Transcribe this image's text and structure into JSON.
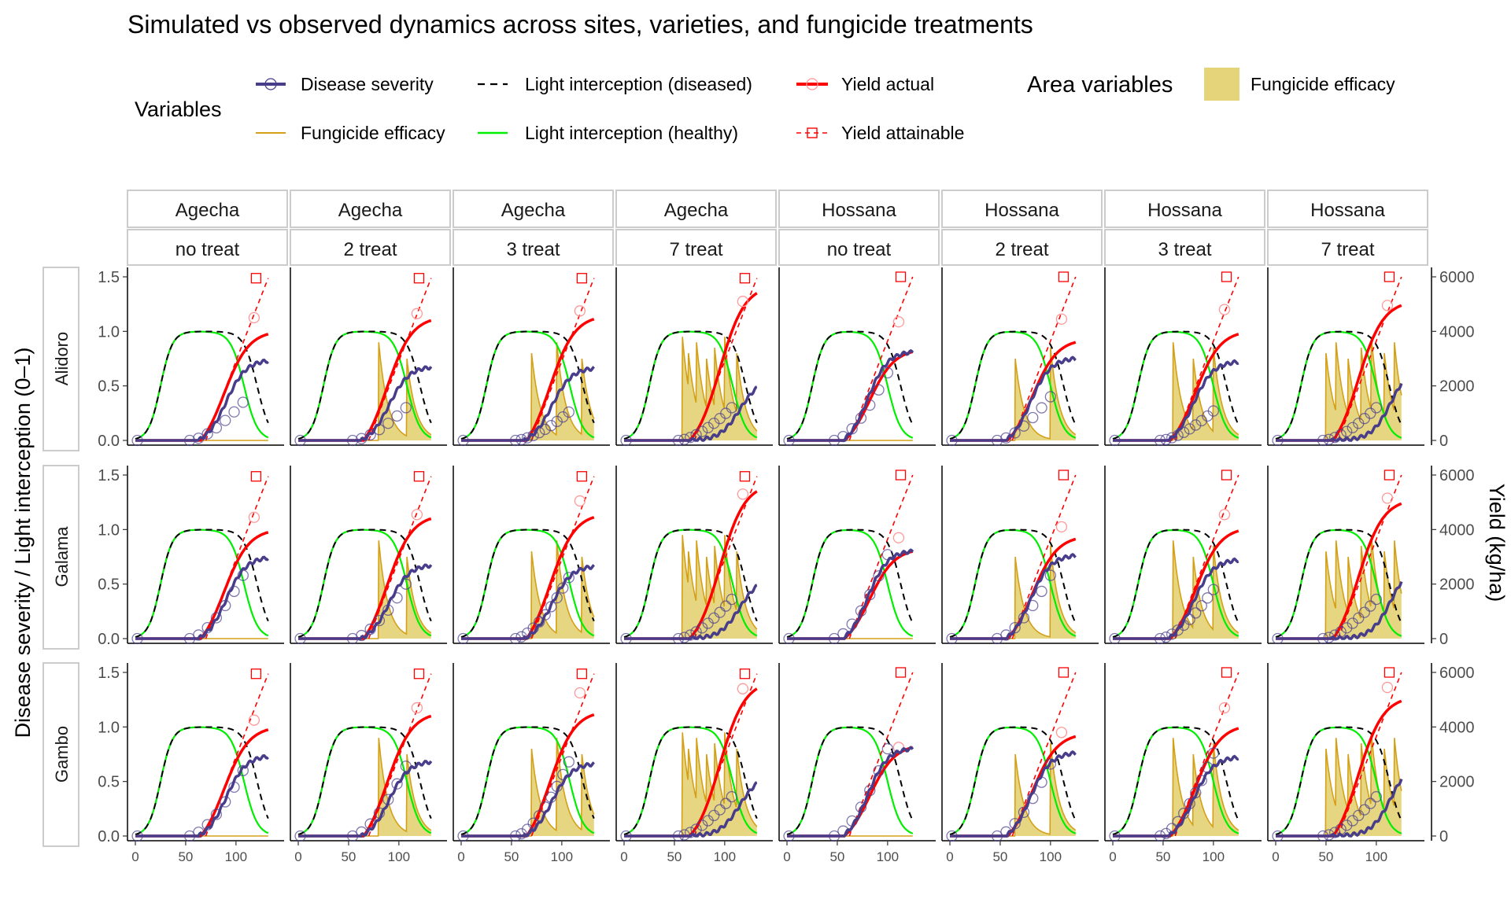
{
  "title": "Simulated vs observed dynamics across sites, varieties, and fungicide treatments",
  "legend": {
    "variables_title": "Variables",
    "area_title": "Area variables",
    "items": [
      {
        "key": "disease",
        "label": "Disease severity",
        "color": "#483D8B"
      },
      {
        "key": "li_dis",
        "label": "Light interception (diseased)",
        "color": "#000000"
      },
      {
        "key": "y_act",
        "label": "Yield actual",
        "color": "#FF0000"
      },
      {
        "key": "fung",
        "label": "Fungicide efficacy",
        "color": "#D4A017"
      },
      {
        "key": "li_h",
        "label": "Light interception (healthy)",
        "color": "#00EE00"
      },
      {
        "key": "y_att",
        "label": "Yield attainable",
        "color": "#FF0000"
      }
    ],
    "area_items": [
      {
        "key": "fung_area",
        "label": "Fungicide efficacy",
        "color": "#E5D47A"
      }
    ]
  },
  "chart_data": {
    "type": "line",
    "ylabel_left": "Disease severity / Light interception (0–1)",
    "ylabel_right": "Yield (kg/ha)",
    "xlabel": "",
    "xlim": [
      0,
      140
    ],
    "ylim_left": [
      0,
      1.5
    ],
    "ylim_right": [
      0,
      6000
    ],
    "x_ticks": [
      "0",
      "50",
      "100"
    ],
    "y_ticks_left": [
      "0.0",
      "0.5",
      "1.0",
      "1.5"
    ],
    "y_ticks_right": [
      "0",
      "2000",
      "4000",
      "6000"
    ],
    "legend_position": "top",
    "sites": [
      "Agecha",
      "Agecha",
      "Agecha",
      "Agecha",
      "Hossana",
      "Hossana",
      "Hossana",
      "Hossana"
    ],
    "treatments": [
      "no treat",
      "2 treat",
      "3 treat",
      "7 treat",
      "no treat",
      "2 treat",
      "3 treat",
      "7 treat"
    ],
    "varieties": [
      "Alidoro",
      "Galama",
      "Gambo"
    ],
    "spray_days": [
      [],
      [
        80,
        108
      ],
      [
        70,
        95,
        120
      ],
      [
        58,
        64,
        72,
        82,
        90,
        100,
        112
      ],
      [],
      [
        65,
        100
      ],
      [
        60,
        80,
        100
      ],
      [
        50,
        60,
        72,
        85,
        95,
        108,
        118
      ]
    ],
    "series_final": {
      "disease": [
        [
          0.73,
          0.67,
          0.66,
          0.48,
          0.81,
          0.75,
          0.72,
          0.52
        ],
        [
          0.74,
          0.67,
          0.66,
          0.48,
          0.8,
          0.76,
          0.72,
          0.52
        ],
        [
          0.73,
          0.68,
          0.66,
          0.48,
          0.8,
          0.76,
          0.72,
          0.52
        ]
      ],
      "yield_actual_kg": [
        [
          3900,
          4400,
          4450,
          5400,
          3250,
          3600,
          3900,
          4950
        ],
        [
          3900,
          4400,
          4450,
          5400,
          3200,
          3650,
          3950,
          4950
        ],
        [
          3900,
          4400,
          4450,
          5400,
          3250,
          3650,
          3950,
          4950
        ]
      ],
      "yield_attainable_kg": [
        5950,
        5950,
        5950,
        5950,
        6000,
        6000,
        6000,
        6000
      ]
    },
    "observed_yield_kg": [
      [
        4500,
        4650,
        4750,
        5100,
        4350,
        4450,
        4800,
        4950
      ],
      [
        4450,
        4550,
        5050,
        5300,
        3700,
        4100,
        4550,
        5150
      ],
      [
        4250,
        4700,
        5250,
        5400,
        3250,
        3800,
        4700,
        5450
      ]
    ],
    "observed_disease_final": [
      [
        0.35,
        0.3,
        0.26,
        0.3,
        0.62,
        0.4,
        0.27,
        0.3
      ],
      [
        0.58,
        0.5,
        0.56,
        0.36,
        0.77,
        0.58,
        0.45,
        0.36
      ],
      [
        0.6,
        0.64,
        0.68,
        0.36,
        0.8,
        0.66,
        0.76,
        0.36
      ]
    ]
  }
}
